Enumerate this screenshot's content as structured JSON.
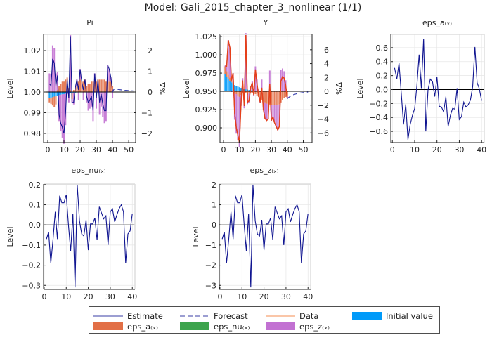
{
  "title": "Model: Gali_2015_chapter_3_nonlinear  (1/1)",
  "colors": {
    "estimate": "#0f1490",
    "forecast": "#2a33a8",
    "data": "#f28a4e",
    "data_line_in_plot": "#e6401a",
    "eps_a": "#e26f46",
    "eps_nu": "#3da44d",
    "eps_z": "#c271d2",
    "initial_value": "#009af9",
    "zero_line": "#000000",
    "grid": "#e6e6e6"
  },
  "legend": {
    "estimate": "Estimate",
    "forecast": "Forecast",
    "data": "Data",
    "initial_value": "Initial value",
    "eps_a": "eps_a₍ₓ₎",
    "eps_nu": "eps_nu₍ₓ₎",
    "eps_z": "eps_z₍ₓ₎"
  },
  "chart_data": [
    {
      "type": "line+stacked-bar",
      "title": "Pi",
      "ylabel": "Level",
      "ylabel_right": "%Δ",
      "xlim": [
        -2.6,
        54.3
      ],
      "ylim": [
        0.9756,
        1.0278
      ],
      "xticks": [
        0,
        10,
        20,
        30,
        40,
        50
      ],
      "yticks": [
        0.98,
        0.99,
        1.0,
        1.01,
        1.02
      ],
      "ytick_labels": [
        "0.98",
        "0.99",
        "1.00",
        "1.01",
        "1.02"
      ],
      "right_ticks": [
        -2,
        -1,
        0,
        1,
        2
      ],
      "right_tick_labels": [
        "−2",
        "−1",
        "0",
        "1",
        "2"
      ],
      "steady_state": 1.0,
      "grid": true,
      "estimate": {
        "x_start": 1,
        "values": [
          1.004,
          1.003,
          1.016,
          1.014,
          1.003,
          1.008,
          0.989,
          0.985,
          0.983,
          0.98,
          0.99,
          1.006,
          0.997,
          1.027,
          0.995,
          0.995,
          1.002,
          1.006,
          1.001,
          1.011,
          1.005,
          1.001,
          1.006,
          0.998,
          0.995,
          0.996,
          0.998,
          0.991,
          1.009,
          0.997,
          1.006,
          0.995,
          0.999,
          0.994,
          0.991,
          0.991,
          1.013,
          1.011,
          1.007,
          1.0
        ]
      },
      "forecast": {
        "x_start": 40,
        "values": [
          1.0,
          1.0015,
          1.0014,
          1.0013,
          1.0012,
          1.0011,
          1.001,
          1.0009,
          1.0008,
          1.0008,
          1.0007,
          1.0006,
          1.0006,
          1.0005
        ]
      },
      "decomposition_pct": {
        "x_start": 1,
        "initial_value": [
          -0.3,
          -0.28,
          -0.25,
          -0.22,
          -0.2,
          -0.18,
          -0.15,
          -0.13,
          -0.11,
          -0.1,
          -0.08,
          -0.07,
          -0.06,
          -0.05,
          -0.04,
          -0.03,
          -0.03,
          -0.02,
          -0.02,
          -0.01,
          0,
          0,
          0,
          0,
          0,
          0,
          0,
          0,
          0,
          0,
          0,
          0,
          0,
          0,
          0,
          0,
          0,
          0,
          0,
          0
        ],
        "eps_a": [
          -0.2,
          -0.3,
          -0.4,
          -0.5,
          -0.4,
          0.1,
          0.3,
          0.4,
          0.5,
          0.5,
          0.6,
          0.7,
          0.2,
          0.1,
          -0.3,
          0.1,
          0.2,
          0.3,
          0.5,
          0.6,
          0.5,
          0.5,
          0.6,
          0.3,
          0.4,
          0.4,
          0.5,
          0.5,
          0.5,
          0.5,
          0.6,
          0.6,
          0.6,
          0.6,
          0.6,
          0.5,
          0.6,
          0.5,
          0.5,
          0.3
        ],
        "eps_z": [
          0.9,
          0.88,
          2.25,
          2.12,
          0.9,
          0.88,
          -1.25,
          -1.77,
          -2.09,
          -2.4,
          -1.52,
          -0.03,
          -0.44,
          2.65,
          -0.16,
          -0.57,
          0.03,
          0.32,
          -0.38,
          0.51,
          0,
          -0.4,
          0,
          -0.5,
          -0.9,
          -0.8,
          -0.7,
          -1.4,
          0.4,
          -0.8,
          0,
          -1.1,
          -0.7,
          -1.2,
          -1.5,
          -1.4,
          0.7,
          0.6,
          0.2,
          -0.3
        ]
      }
    },
    {
      "type": "line+stacked-bar",
      "title": "Y",
      "ylabel": "Level",
      "ylabel_right": "%Δ",
      "xlim": [
        -2.2,
        55.5
      ],
      "ylim": [
        0.8798,
        1.028
      ],
      "xticks": [
        0,
        10,
        20,
        30,
        40,
        50
      ],
      "yticks": [
        0.9,
        0.925,
        0.95,
        0.975,
        1.0,
        1.025
      ],
      "ytick_labels": [
        "0.900",
        "0.925",
        "0.950",
        "0.975",
        "1.000",
        "1.025"
      ],
      "right_ticks": [
        -6,
        -4,
        -2,
        0,
        2,
        4,
        6
      ],
      "right_tick_labels": [
        "−6",
        "−4",
        "−2",
        "0",
        "2",
        "4",
        "6"
      ],
      "steady_state": 0.95,
      "grid": true,
      "estimate": {
        "x_start": 1,
        "values": [
          0.985,
          0.984,
          1.02,
          1.01,
          0.965,
          0.975,
          0.92,
          0.9,
          0.89,
          0.88,
          0.935,
          0.965,
          0.93,
          1.027,
          0.935,
          0.937,
          0.955,
          0.962,
          0.945,
          0.98,
          0.96,
          0.945,
          0.935,
          0.955,
          0.925,
          0.913,
          0.91,
          0.912,
          0.96,
          0.91,
          0.915,
          0.907,
          0.902,
          0.897,
          0.902,
          0.964,
          0.97,
          0.968,
          0.958,
          0.94
        ]
      },
      "data": {
        "x_start": 1,
        "values": [
          0.985,
          0.984,
          1.02,
          1.01,
          0.965,
          0.975,
          0.92,
          0.9,
          0.89,
          0.88,
          0.935,
          0.965,
          0.93,
          1.027,
          0.935,
          0.937,
          0.955,
          0.962,
          0.945,
          0.98,
          0.96,
          0.945,
          0.935,
          0.955,
          0.925,
          0.913,
          0.91,
          0.912,
          0.96,
          0.91,
          0.915,
          0.907,
          0.902,
          0.897,
          0.902,
          0.964,
          0.97,
          0.968,
          0.958,
          0.94
        ]
      },
      "forecast": {
        "x_start": 40,
        "values": [
          0.94,
          0.942,
          0.9435,
          0.9445,
          0.9455,
          0.9462,
          0.9468,
          0.9473,
          0.9477,
          0.948,
          0.9483,
          0.9486,
          0.9488,
          0.949
        ]
      },
      "decomposition_pct": {
        "x_start": 1,
        "initial_value": [
          2.5,
          2.1,
          1.8,
          1.5,
          1.3,
          1.1,
          0.9,
          0.8,
          0.7,
          0.6,
          0.5,
          0.4,
          0.35,
          0.3,
          0.25,
          0.2,
          0.18,
          0.15,
          0.12,
          0.1,
          0.09,
          0.08,
          0.07,
          0.06,
          0.05,
          0.04,
          0.03,
          0.03,
          0.02,
          0.02,
          0,
          0,
          0,
          0,
          0,
          0,
          0,
          0,
          0,
          0
        ],
        "eps_a": [
          1.0,
          0.8,
          0.6,
          0.5,
          0.4,
          0.2,
          -0.2,
          -0.4,
          -0.6,
          -0.8,
          -0.5,
          -0.3,
          -0.4,
          -0.3,
          -0.5,
          -0.3,
          -0.3,
          -0.2,
          -0.5,
          -0.4,
          -0.6,
          -0.8,
          -1.0,
          -1.2,
          -1.5,
          -1.6,
          -1.8,
          -1.8,
          -1.9,
          -2.0,
          -2.0,
          -2.0,
          -2.0,
          -2.0,
          -1.9,
          -1.6,
          -1.2,
          -1.0,
          -0.8,
          -0.6
        ],
        "eps_z": [
          0.2,
          0.7,
          5.0,
          4.3,
          -0.1,
          1.3,
          -3.9,
          -5.7,
          -6.4,
          -7.2,
          -1.6,
          1.5,
          -2.05,
          8.1,
          -1.35,
          -1.3,
          0.62,
          1.35,
          -0.12,
          3.5,
          1.61,
          0.22,
          -0.67,
          1.64,
          -1.15,
          -2.34,
          -2.43,
          -2.23,
          2.98,
          -2.22,
          -1.7,
          -2.5,
          -3.1,
          -3.6,
          -3.2,
          3.1,
          3.3,
          2.9,
          1.6,
          -0.4
        ]
      }
    },
    {
      "type": "line",
      "title": "eps_a₍ₓ₎",
      "ylabel": "Level",
      "xlim": [
        -0.7,
        41.2
      ],
      "ylim": [
        -0.76,
        0.79
      ],
      "xticks": [
        0,
        10,
        20,
        30,
        40
      ],
      "yticks": [
        -0.6,
        -0.4,
        -0.2,
        0.0,
        0.2,
        0.4,
        0.6
      ],
      "ytick_labels": [
        "−0.6",
        "−0.4",
        "−0.2",
        "0.0",
        "0.2",
        "0.4",
        "0.6"
      ],
      "grid": true,
      "estimate": {
        "x_start": 1,
        "values": [
          0.31,
          0.15,
          0.38,
          -0.05,
          -0.5,
          -0.21,
          -0.72,
          -0.5,
          -0.37,
          -0.27,
          0.05,
          0.5,
          0.02,
          0.73,
          -0.6,
          0.0,
          0.15,
          0.11,
          -0.1,
          0.18,
          -0.24,
          -0.25,
          -0.32,
          -0.1,
          -0.53,
          -0.37,
          -0.27,
          -0.28,
          0.02,
          -0.43,
          -0.39,
          -0.18,
          -0.25,
          -0.22,
          -0.15,
          0.04,
          0.61,
          0.1,
          0.01,
          -0.16
        ]
      }
    },
    {
      "type": "line",
      "title": "eps_nu₍ₓ₎",
      "ylabel": "Level",
      "xlim": [
        -0.3,
        41.2
      ],
      "ylim": [
        -0.32,
        0.203
      ],
      "xticks": [
        0,
        10,
        20,
        30,
        40
      ],
      "yticks": [
        -0.3,
        -0.2,
        -0.1,
        0.0,
        0.1,
        0.2
      ],
      "ytick_labels": [
        "−0.3",
        "−0.2",
        "−0.1",
        "0.0",
        "0.1",
        "0.2"
      ],
      "grid": true,
      "estimate": {
        "x_start": 1,
        "values": [
          -0.07,
          -0.035,
          -0.19,
          -0.07,
          0.065,
          -0.07,
          0.145,
          0.11,
          0.11,
          0.15,
          0.0,
          -0.13,
          0.055,
          -0.31,
          0.2,
          0.02,
          -0.045,
          -0.055,
          0.025,
          -0.125,
          0.005,
          0.005,
          0.035,
          -0.075,
          0.09,
          0.06,
          0.03,
          0.045,
          -0.1,
          0.065,
          0.08,
          0.015,
          0.05,
          0.08,
          0.1,
          0.065,
          -0.19,
          -0.045,
          -0.03,
          0.055
        ]
      }
    },
    {
      "type": "line",
      "title": "eps_z₍ₓ₎",
      "ylabel": "Level",
      "xlim": [
        -0.3,
        41.2
      ],
      "ylim": [
        -3.2,
        2.03
      ],
      "xticks": [
        0,
        10,
        20,
        30,
        40
      ],
      "yticks": [
        -3,
        -2,
        -1,
        0,
        1,
        2
      ],
      "ytick_labels": [
        "−3",
        "−2",
        "−1",
        "0",
        "1",
        "2"
      ],
      "grid": true,
      "estimate": {
        "x_start": 1,
        "values": [
          -0.7,
          -0.35,
          -1.9,
          -0.7,
          0.65,
          -0.7,
          1.45,
          1.1,
          1.1,
          1.5,
          0.0,
          -1.3,
          0.55,
          -3.1,
          2.0,
          0.2,
          -0.45,
          -0.55,
          0.25,
          -1.25,
          0.05,
          0.05,
          0.35,
          -0.75,
          0.9,
          0.6,
          0.3,
          0.45,
          -1.0,
          0.65,
          0.8,
          0.15,
          0.5,
          0.8,
          1.0,
          0.65,
          -1.9,
          -0.45,
          -0.3,
          0.55
        ]
      }
    }
  ]
}
